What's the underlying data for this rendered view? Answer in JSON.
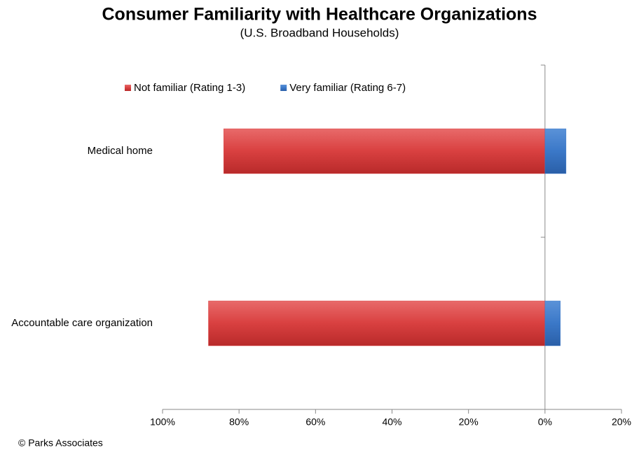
{
  "chart_data": {
    "type": "hbar_diverging",
    "title": "Consumer Familiarity with Healthcare Organizations",
    "subtitle": "(U.S. Broadband Households)",
    "categories": [
      "Medical home",
      "Accountable care organization"
    ],
    "series": [
      {
        "name": "Not familiar (Rating 1-3)",
        "color": "#d94040",
        "values": [
          -84,
          -88
        ]
      },
      {
        "name": "Very familiar (Rating 6-7)",
        "color": "#3b78c8",
        "values": [
          5.5,
          4
        ]
      }
    ],
    "xlim": [
      -100,
      20
    ],
    "xticks": [
      {
        "value": -100,
        "label": "100%"
      },
      {
        "value": -80,
        "label": "80%"
      },
      {
        "value": -60,
        "label": "60%"
      },
      {
        "value": -40,
        "label": "40%"
      },
      {
        "value": -20,
        "label": "20%"
      },
      {
        "value": 0,
        "label": "0%"
      },
      {
        "value": 20,
        "label": "20%"
      }
    ],
    "legend": "top",
    "source": "© Parks Associates"
  }
}
